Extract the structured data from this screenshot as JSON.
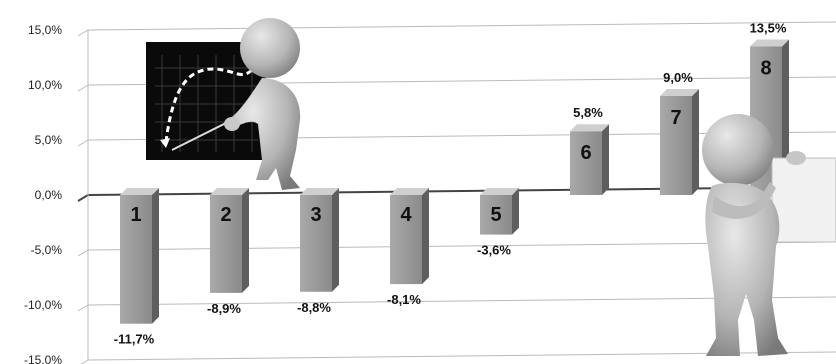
{
  "chart_data": {
    "type": "bar",
    "categories": [
      "1",
      "2",
      "3",
      "4",
      "5",
      "6",
      "7",
      "8"
    ],
    "values": [
      -11.7,
      -8.9,
      -8.8,
      -8.1,
      -3.6,
      5.8,
      9.0,
      13.5
    ],
    "data_labels": [
      "-11,7%",
      "-8,9%",
      "-8,8%",
      "-8,1%",
      "-3,6%",
      "5,8%",
      "9,0%",
      "13,5%"
    ],
    "ylim": [
      -15,
      15
    ],
    "yticks": [
      15,
      10,
      5,
      0,
      -5,
      -10,
      -15
    ],
    "ytick_labels": [
      "15,0%",
      "10,0%",
      "5,0%",
      "0,0%",
      "-5,0%",
      "-10,0%",
      "-15,0%"
    ],
    "grid": true,
    "style": "3d grey columns"
  },
  "illustrations": {
    "left": "presenter-figure-with-whiteboard",
    "right": "thinking-figure-with-paper"
  }
}
